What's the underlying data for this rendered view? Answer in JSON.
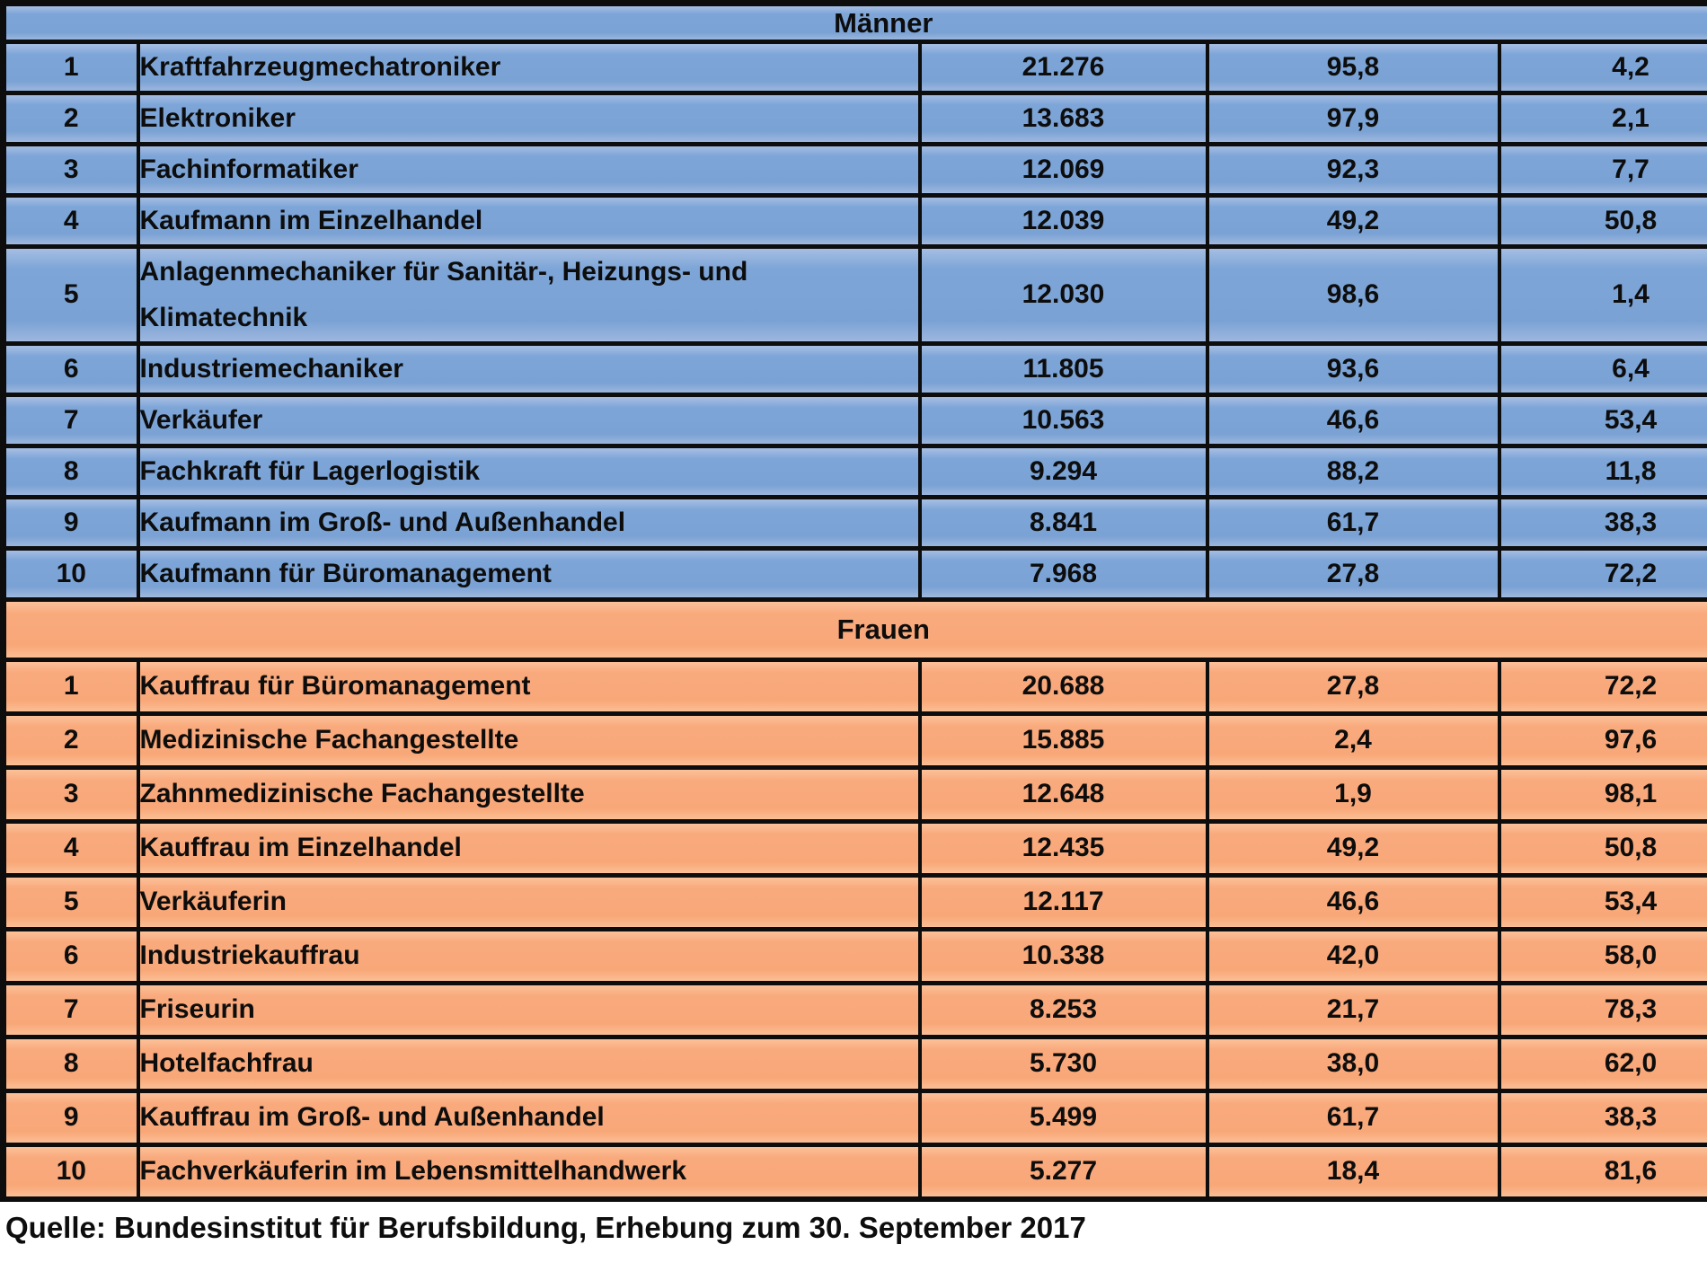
{
  "chart_data": {
    "type": "table",
    "sections": [
      {
        "label": "Männer",
        "theme": "blue",
        "rows": [
          {
            "rank": "1",
            "occupation": "Kraftfahrzeugmechatroniker",
            "value": "21.276",
            "pct1": "95,8",
            "pct2": "4,2"
          },
          {
            "rank": "2",
            "occupation": "Elektroniker",
            "value": "13.683",
            "pct1": "97,9",
            "pct2": "2,1"
          },
          {
            "rank": "3",
            "occupation": "Fachinformatiker",
            "value": "12.069",
            "pct1": "92,3",
            "pct2": "7,7"
          },
          {
            "rank": "4",
            "occupation": "Kaufmann im Einzelhandel",
            "value": "12.039",
            "pct1": "49,2",
            "pct2": "50,8"
          },
          {
            "rank": "5",
            "occupation": "Anlagenmechaniker für Sanitär-, Heizungs- und Klimatechnik",
            "value": "12.030",
            "pct1": "98,6",
            "pct2": "1,4"
          },
          {
            "rank": "6",
            "occupation": "Industriemechaniker",
            "value": "11.805",
            "pct1": "93,6",
            "pct2": "6,4"
          },
          {
            "rank": "7",
            "occupation": "Verkäufer",
            "value": "10.563",
            "pct1": "46,6",
            "pct2": "53,4"
          },
          {
            "rank": "8",
            "occupation": "Fachkraft für Lagerlogistik",
            "value": "9.294",
            "pct1": "88,2",
            "pct2": "11,8"
          },
          {
            "rank": "9",
            "occupation": "Kaufmann im Groß- und Außenhandel",
            "value": "8.841",
            "pct1": "61,7",
            "pct2": "38,3"
          },
          {
            "rank": "10",
            "occupation": "Kaufmann für Büromanagement",
            "value": "7.968",
            "pct1": "27,8",
            "pct2": "72,2"
          }
        ]
      },
      {
        "label": "Frauen",
        "theme": "orange",
        "rows": [
          {
            "rank": "1",
            "occupation": "Kauffrau für Büromanagement",
            "value": "20.688",
            "pct1": "27,8",
            "pct2": "72,2"
          },
          {
            "rank": "2",
            "occupation": "Medizinische Fachangestellte",
            "value": "15.885",
            "pct1": "2,4",
            "pct2": "97,6"
          },
          {
            "rank": "3",
            "occupation": "Zahnmedizinische Fachangestellte",
            "value": "12.648",
            "pct1": "1,9",
            "pct2": "98,1"
          },
          {
            "rank": "4",
            "occupation": "Kauffrau im Einzelhandel",
            "value": "12.435",
            "pct1": "49,2",
            "pct2": "50,8"
          },
          {
            "rank": "5",
            "occupation": "Verkäuferin",
            "value": "12.117",
            "pct1": "46,6",
            "pct2": "53,4"
          },
          {
            "rank": "6",
            "occupation": "Industriekauffrau",
            "value": "10.338",
            "pct1": "42,0",
            "pct2": "58,0"
          },
          {
            "rank": "7",
            "occupation": "Friseurin",
            "value": "8.253",
            "pct1": "21,7",
            "pct2": "78,3"
          },
          {
            "rank": "8",
            "occupation": "Hotelfachfrau",
            "value": "5.730",
            "pct1": "38,0",
            "pct2": "62,0"
          },
          {
            "rank": "9",
            "occupation": "Kauffrau im Groß- und Außenhandel",
            "value": "5.499",
            "pct1": "61,7",
            "pct2": "38,3"
          },
          {
            "rank": "10",
            "occupation": "Fachverkäuferin im Lebensmittelhandwerk",
            "value": "5.277",
            "pct1": "18,4",
            "pct2": "81,6"
          }
        ]
      }
    ],
    "source": "Quelle: Bundesinstitut für Berufsbildung, Erhebung zum 30. September 2017",
    "colors": {
      "male_blue": "#7da5d7",
      "female_orange": "#f9aa7d",
      "border_black": "#0d0d0d",
      "text": "#0d0d0d",
      "background": "#ffffff"
    },
    "layout": {
      "legend": "none",
      "grid": "table borders",
      "column_count": 5,
      "right_edge_clipped": true
    }
  }
}
